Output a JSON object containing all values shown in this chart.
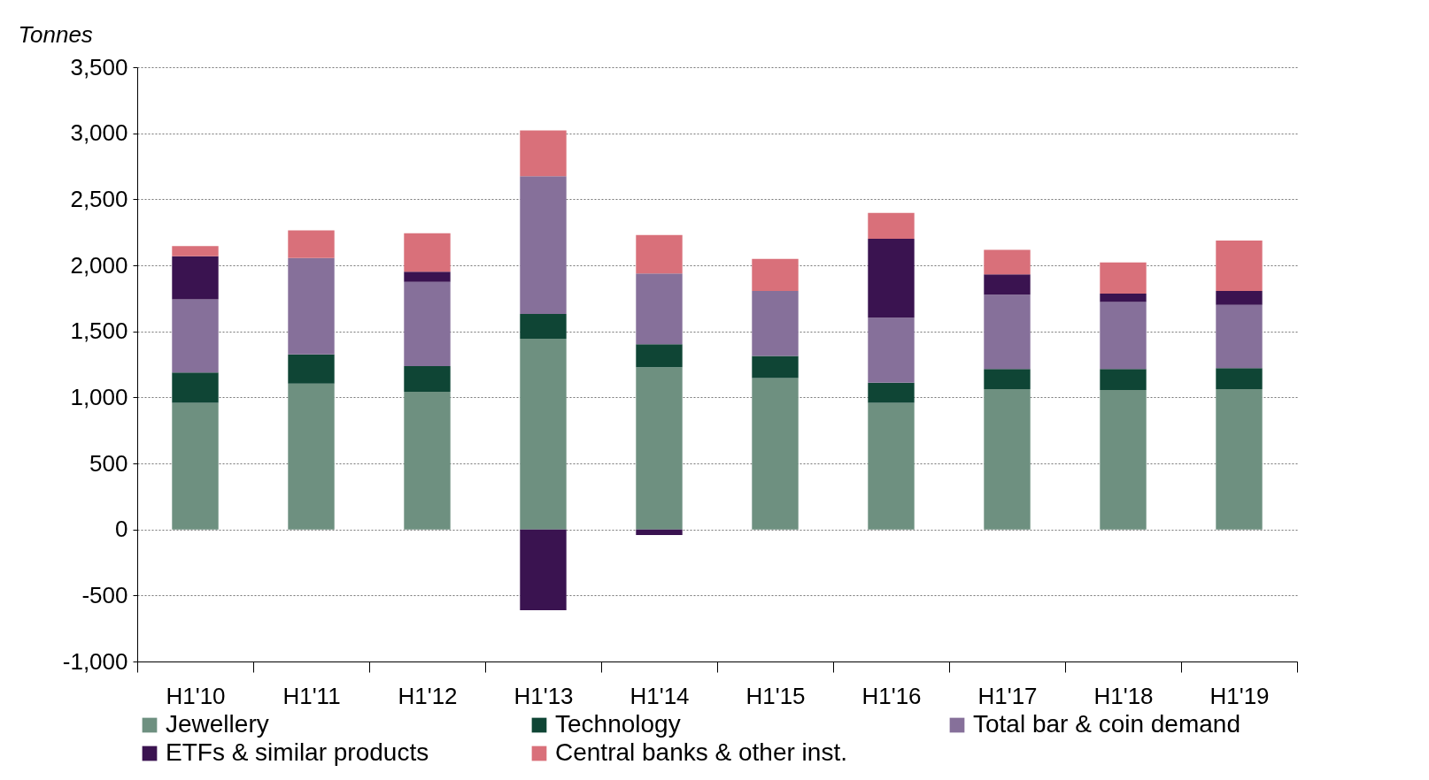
{
  "chart_data": {
    "type": "bar",
    "stacked": true,
    "ylabel": "Tonnes",
    "categories": [
      "H1'10",
      "H1'11",
      "H1'12",
      "H1'13",
      "H1'14",
      "H1'15",
      "H1'16",
      "H1'17",
      "H1'18",
      "H1'19"
    ],
    "series": [
      {
        "name": "Jewellery",
        "color": "#6e9080",
        "values": [
          958,
          1104,
          1042,
          1444,
          1229,
          1146,
          958,
          1063,
          1056,
          1063
        ]
      },
      {
        "name": "Technology",
        "color": "#0f4535",
        "values": [
          230,
          222,
          194,
          188,
          174,
          167,
          153,
          152,
          159,
          159
        ]
      },
      {
        "name": "Total bar & coin demand",
        "color": "#86709a",
        "values": [
          555,
          730,
          639,
          1042,
          535,
          493,
          493,
          563,
          507,
          479
        ]
      },
      {
        "name": "ETFs & similar products",
        "color": "#3a1350",
        "values": [
          326,
          0,
          76,
          -611,
          -42,
          0,
          597,
          153,
          63,
          105
        ]
      },
      {
        "name": "Central banks & other inst.",
        "color": "#d9707a",
        "values": [
          77,
          208,
          292,
          347,
          291,
          243,
          195,
          187,
          236,
          382
        ]
      }
    ],
    "ylim": [
      -1000,
      3500
    ],
    "yticks": [
      {
        "value": -1000,
        "label": "-1,000"
      },
      -500,
      0,
      500,
      {
        "value": 1000,
        "label": "1,000"
      },
      {
        "value": 1500,
        "label": "1,500"
      },
      {
        "value": 2000,
        "label": "2,000"
      },
      {
        "value": 2500,
        "label": "2,500"
      },
      {
        "value": 3000,
        "label": "3,000"
      },
      {
        "value": 3500,
        "label": "3,500"
      }
    ],
    "grid": "y",
    "legend": "bottom"
  }
}
